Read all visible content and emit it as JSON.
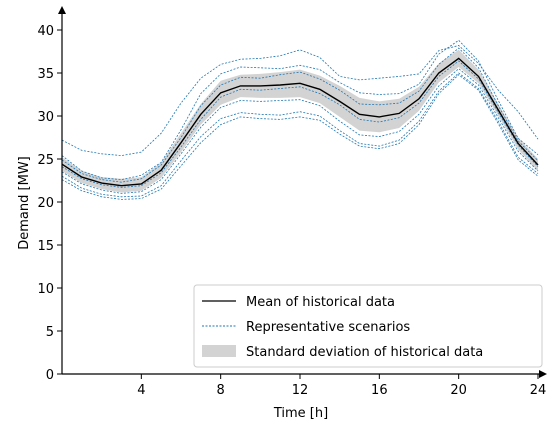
{
  "chart_data": {
    "type": "line",
    "xlabel": "Time [h]",
    "ylabel": "Demand [MW]",
    "xlim": [
      0,
      24.5
    ],
    "ylim": [
      0,
      42
    ],
    "x_ticks": [
      4,
      8,
      12,
      16,
      20,
      24
    ],
    "x_tick_labels": [
      "4",
      "8",
      "12",
      "16",
      "20",
      "24"
    ],
    "y_ticks": [
      0,
      5,
      10,
      15,
      20,
      25,
      30,
      35,
      40
    ],
    "y_tick_labels": [
      "0",
      "5",
      "10",
      "15",
      "20",
      "25",
      "30",
      "35",
      "40"
    ],
    "grid": false,
    "legend": {
      "placement": "lower-right",
      "entries": [
        "Mean of historical data",
        "Representative scenarios",
        "Standard deviation of historical data"
      ]
    },
    "colors": {
      "mean": "#000000",
      "scenarios": "#1f77b4",
      "std_band": "#d3d3d3"
    },
    "x": [
      0,
      1,
      2,
      3,
      4,
      5,
      6,
      7,
      8,
      9,
      10,
      11,
      12,
      13,
      14,
      15,
      16,
      17,
      18,
      19,
      20,
      21,
      22,
      23,
      24
    ],
    "mean": [
      24.4,
      22.9,
      22.2,
      21.9,
      22.1,
      23.7,
      26.9,
      30.2,
      32.7,
      33.5,
      33.5,
      33.6,
      33.8,
      33.1,
      31.7,
      30.2,
      29.9,
      30.3,
      32.0,
      35.0,
      36.7,
      34.6,
      30.7,
      26.8,
      24.3
    ],
    "std_lower": [
      23.6,
      22.2,
      21.5,
      21.1,
      21.3,
      22.8,
      25.8,
      29.0,
      31.3,
      32.2,
      32.1,
      32.1,
      32.2,
      31.5,
      29.9,
      28.3,
      28.1,
      28.6,
      30.6,
      33.9,
      35.7,
      33.8,
      30.0,
      26.1,
      23.6
    ],
    "std_upper": [
      25.2,
      23.6,
      22.9,
      22.7,
      22.9,
      24.6,
      28.0,
      31.4,
      34.1,
      34.8,
      34.9,
      35.1,
      35.4,
      34.7,
      33.5,
      32.1,
      31.7,
      32.0,
      33.4,
      36.1,
      37.7,
      35.4,
      31.4,
      27.5,
      25.0
    ],
    "series": [
      {
        "values": [
          27.2,
          26.0,
          25.6,
          25.4,
          25.8,
          28.0,
          31.5,
          34.4,
          36.0,
          36.6,
          36.7,
          37.0,
          37.7,
          36.8,
          34.6,
          34.2,
          34.4,
          34.6,
          34.9,
          37.6,
          38.2,
          36.1,
          33.0,
          30.5,
          27.3
        ]
      },
      {
        "values": [
          25.4,
          23.6,
          22.8,
          22.6,
          23.1,
          24.6,
          28.4,
          32.6,
          34.9,
          35.7,
          35.6,
          35.5,
          35.9,
          35.4,
          33.9,
          32.7,
          32.5,
          32.6,
          33.7,
          37.2,
          38.8,
          36.4,
          31.8,
          27.4,
          25.5
        ]
      },
      {
        "values": [
          24.9,
          23.3,
          22.6,
          22.3,
          22.7,
          24.3,
          27.5,
          31.2,
          33.6,
          34.5,
          34.4,
          34.8,
          35.1,
          34.3,
          33.0,
          31.4,
          31.3,
          31.5,
          32.9,
          36.0,
          37.9,
          35.6,
          31.2,
          27.1,
          24.8
        ]
      },
      {
        "values": [
          24.1,
          22.7,
          22.0,
          21.7,
          21.9,
          23.4,
          26.4,
          29.6,
          32.2,
          33.1,
          33.0,
          33.2,
          33.4,
          32.6,
          31.3,
          29.6,
          29.3,
          29.8,
          31.5,
          34.6,
          36.4,
          34.3,
          30.4,
          26.6,
          24.1
        ]
      },
      {
        "values": [
          23.5,
          22.1,
          21.4,
          21.0,
          21.2,
          22.6,
          25.6,
          28.7,
          31.0,
          31.8,
          31.7,
          31.8,
          31.9,
          31.2,
          29.4,
          27.8,
          27.6,
          28.2,
          30.2,
          33.5,
          35.5,
          33.6,
          29.8,
          25.9,
          23.6
        ]
      },
      {
        "values": [
          23.0,
          21.6,
          20.9,
          20.6,
          20.7,
          21.9,
          24.8,
          27.6,
          29.7,
          30.4,
          30.2,
          30.1,
          30.5,
          30.0,
          28.3,
          26.8,
          26.5,
          27.2,
          29.4,
          32.9,
          35.0,
          33.2,
          29.4,
          25.2,
          23.3
        ]
      },
      {
        "values": [
          22.6,
          21.3,
          20.6,
          20.3,
          20.4,
          21.5,
          24.2,
          26.9,
          29.0,
          29.9,
          29.7,
          29.6,
          29.9,
          29.5,
          27.9,
          26.5,
          26.2,
          26.8,
          29.0,
          32.6,
          34.8,
          33.0,
          29.1,
          24.9,
          23.0
        ]
      }
    ]
  }
}
